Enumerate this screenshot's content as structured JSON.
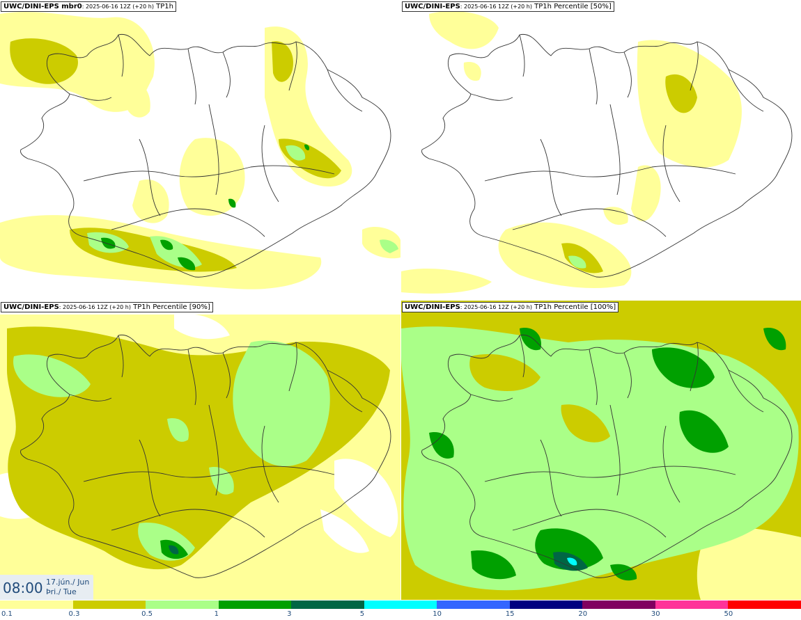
{
  "panels": [
    {
      "model": "UWC/DINI-EPS mbr0",
      "run": ": 2025-06-16 12Z (+20 h)",
      "field": "TP1h"
    },
    {
      "model": "UWC/DINI-EPS",
      "run": ": 2025-06-16 12Z (+20 h)",
      "field": "TP1h Percentile [50%]"
    },
    {
      "model": "UWC/DINI-EPS",
      "run": ": 2025-06-16 12Z (+20 h)",
      "field": "TP1h Percentile [90%]"
    },
    {
      "model": "UWC/DINI-EPS",
      "run": ": 2025-06-16 12Z (+20 h)",
      "field": "TP1h Percentile [100%]"
    }
  ],
  "valid_time": {
    "time": "08:00",
    "date": "17.jún./ Jun",
    "weekday": "Þri./ Tue"
  },
  "legend": {
    "labels": [
      "0.1",
      "0.3",
      "0.5",
      "1",
      "3",
      "5",
      "10",
      "15",
      "20",
      "30",
      "50"
    ],
    "colors": [
      "#ffff99",
      "#cccc00",
      "#aaff88",
      "#00a000",
      "#006644",
      "#00ffff",
      "#3366ff",
      "#000080",
      "#800060",
      "#ff3399",
      "#ff0000"
    ]
  },
  "colors": {
    "land_outline": "#333333",
    "level_01": "#ffff99",
    "level_03": "#cccc00",
    "level_05": "#aaff88",
    "level_1": "#00a000",
    "level_3": "#006644",
    "level_5": "#00ffff"
  }
}
